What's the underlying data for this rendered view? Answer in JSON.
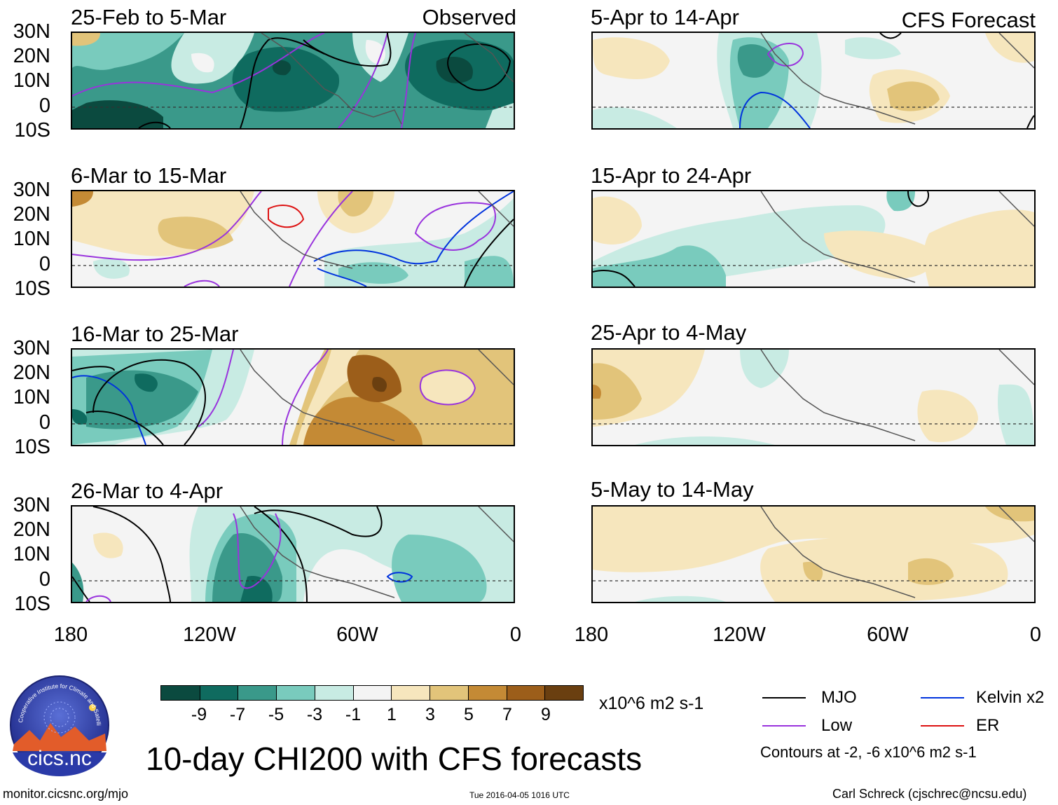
{
  "panels_left": [
    {
      "title": "25-Feb to 5-Mar",
      "tag": "Observed"
    },
    {
      "title": "6-Mar to 15-Mar",
      "tag": ""
    },
    {
      "title": "16-Mar to 25-Mar",
      "tag": ""
    },
    {
      "title": "26-Mar to 4-Apr",
      "tag": ""
    }
  ],
  "panels_right": [
    {
      "title": "5-Apr to 14-Apr",
      "tag": "CFS Forecast"
    },
    {
      "title": "15-Apr to 24-Apr",
      "tag": ""
    },
    {
      "title": "25-Apr to 4-May",
      "tag": ""
    },
    {
      "title": "5-May to 14-May",
      "tag": ""
    }
  ],
  "lat_labels": [
    "30N",
    "20N",
    "10N",
    "0",
    "10S"
  ],
  "lon_labels": [
    "180",
    "120W",
    "60W",
    "0"
  ],
  "colorbar": {
    "colors": [
      "#0b4a3f",
      "#0f6b5f",
      "#3a998a",
      "#79cbbd",
      "#c8ebe3",
      "#f4f4f4",
      "#f6e6bd",
      "#e2c47a",
      "#c48a35",
      "#9c5e1a",
      "#6a3f10"
    ],
    "labels": [
      "-9",
      "-7",
      "-5",
      "-3",
      "-1",
      "1",
      "3",
      "5",
      "7",
      "9"
    ],
    "units": "x10^6 m2 s-1"
  },
  "legend": {
    "items": [
      {
        "label": "MJO",
        "color": "#000000"
      },
      {
        "label": "Kelvin x2",
        "color": "#0033dd"
      },
      {
        "label": "Low",
        "color": "#9933dd"
      },
      {
        "label": "ER",
        "color": "#dd1111"
      }
    ],
    "contours_note": "Contours at -2, -6 x10^6 m2 s-1"
  },
  "main_title": "10-day CHI200 with CFS forecasts",
  "logo_text": "cics.nc",
  "logo_ring_text": "Cooperative Institute for Climate and Satellites",
  "footer": {
    "left": "monitor.cicsnc.org/mjo",
    "center": "Tue 2016-04-05 1016 UTC",
    "right": "Carl Schreck (cjschrec@ncsu.edu)"
  }
}
